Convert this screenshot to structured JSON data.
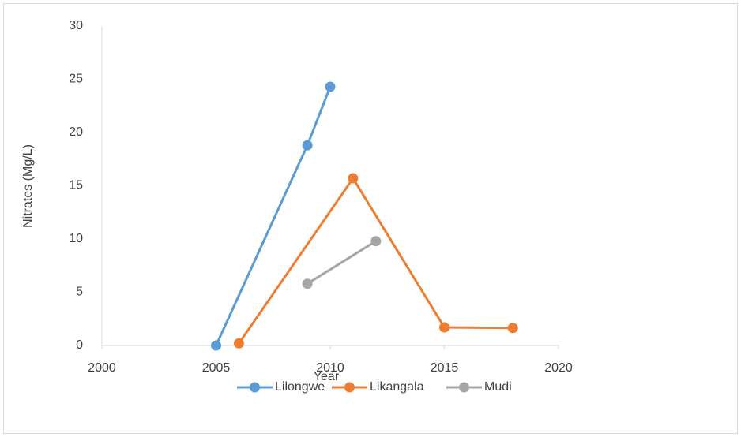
{
  "chart_data": {
    "type": "line",
    "xlabel": "Year",
    "ylabel": "Nitrates (Mg/L)",
    "xlim": [
      2000,
      2020
    ],
    "xticks": [
      2000,
      2005,
      2010,
      2015,
      2020
    ],
    "ylim": [
      0,
      30
    ],
    "yticks": [
      0,
      5,
      10,
      15,
      20,
      25,
      30
    ],
    "grid": false,
    "legend": "bottom",
    "series": [
      {
        "name": "Lilongwe",
        "color": "#5b9bd5",
        "x": [
          2005,
          2009,
          2010
        ],
        "values": [
          0,
          18.8,
          24.3
        ]
      },
      {
        "name": "Likangala",
        "color": "#ed7d31",
        "x": [
          2006,
          2011,
          2015,
          2018
        ],
        "values": [
          0.2,
          15.7,
          1.7,
          1.65
        ]
      },
      {
        "name": "Mudi",
        "color": "#a5a5a5",
        "x": [
          2009,
          2012
        ],
        "values": [
          5.8,
          9.8
        ]
      }
    ]
  }
}
